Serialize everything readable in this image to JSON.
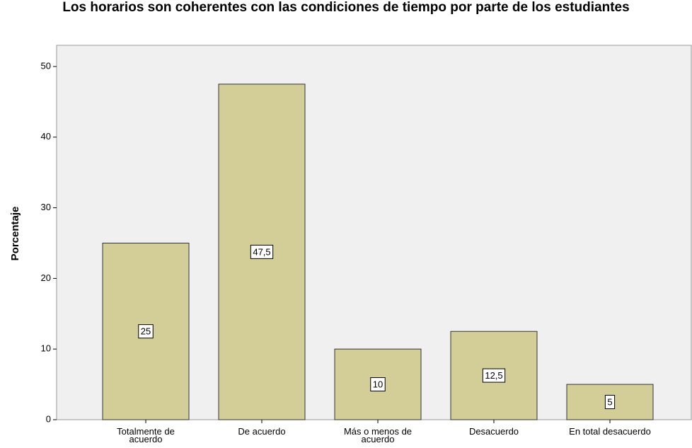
{
  "chart_data": {
    "type": "bar",
    "title": "Los horarios son coherentes con las condiciones de tiempo por parte de los estudiantes",
    "y_label": "Porcentaje",
    "categories": [
      "Totalmente de acuerdo",
      "De acuerdo",
      "Más o menos de acuerdo",
      "Desacuerdo",
      "En total desacuerdo"
    ],
    "values": [
      25,
      47.5,
      10,
      12.5,
      5
    ],
    "value_labels": [
      "25",
      "47,5",
      "10",
      "12,5",
      "5"
    ],
    "color": "#d3ce97",
    "ylim": [
      0,
      53
    ],
    "yticks": [
      0,
      10,
      20,
      30,
      40,
      50
    ]
  }
}
